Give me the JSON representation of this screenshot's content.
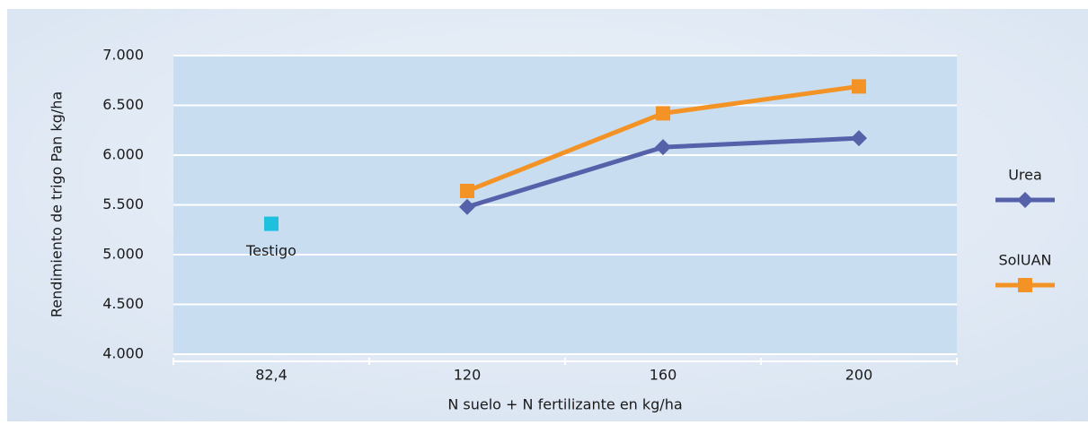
{
  "chart_data": {
    "type": "line",
    "x_label": "N suelo + N fertilizante en kg/ha",
    "y_label": "Rendimiento de trigo Pan kg/ha",
    "categories": [
      "82,4",
      "120",
      "160",
      "200"
    ],
    "series": [
      {
        "name": "Urea",
        "color": "#5561a8",
        "marker": "diamond",
        "line": true,
        "values": [
          null,
          5480,
          6080,
          6170
        ]
      },
      {
        "name": "SolUAN",
        "color": "#f39325",
        "marker": "square",
        "line": true,
        "values": [
          null,
          5640,
          6420,
          6690
        ]
      },
      {
        "name": "Testigo",
        "color": "#1ec0de",
        "marker": "square",
        "line": false,
        "values": [
          5310,
          null,
          null,
          null
        ]
      }
    ],
    "ylim": [
      4000,
      7000
    ],
    "yticks": [
      {
        "value": 4000,
        "label": "4.000"
      },
      {
        "value": 4500,
        "label": "4.500"
      },
      {
        "value": 5000,
        "label": "5.000"
      },
      {
        "value": 5500,
        "label": "5.500"
      },
      {
        "value": 6000,
        "label": "6.000"
      },
      {
        "value": 6500,
        "label": "6.500"
      },
      {
        "value": 7000,
        "label": "7.000"
      }
    ],
    "grid": true,
    "legend": "right"
  }
}
